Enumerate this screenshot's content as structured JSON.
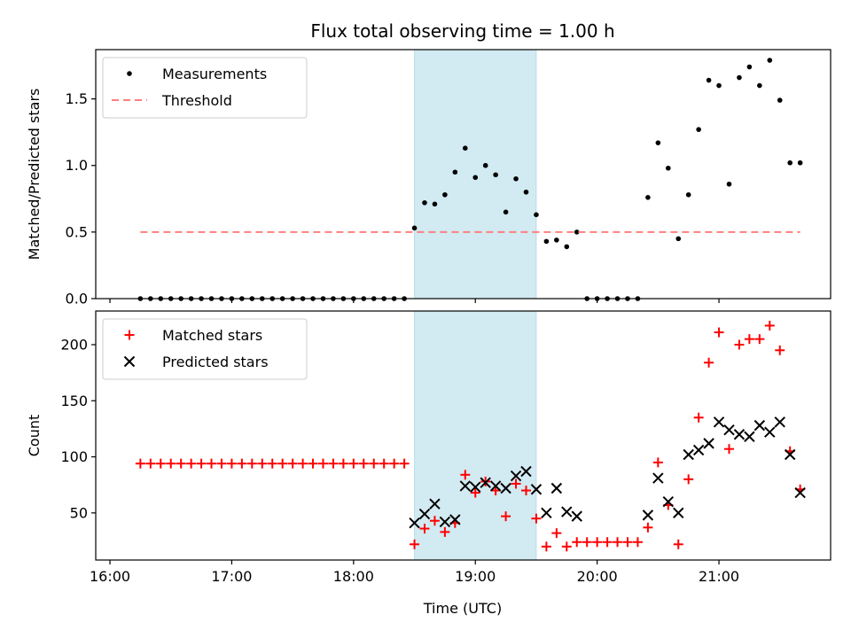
{
  "chart_data": {
    "type": "scatter",
    "title": "Flux total observing time = 1.00 h",
    "xlabel": "Time (UTC)",
    "x_ticks": [
      "16:00",
      "17:00",
      "18:00",
      "19:00",
      "20:00",
      "21:00"
    ],
    "highlight_span": {
      "x": [
        "18:30",
        "19:30"
      ],
      "color": "#add8e6"
    },
    "panels": [
      {
        "ylabel": "Matched/Predicted stars",
        "ylim": [
          0,
          1.87
        ],
        "y_ticks": [
          "0.0",
          "0.5",
          "1.0",
          "1.5"
        ],
        "legend_position": "upper-left",
        "series": [
          {
            "name": "Measurements",
            "marker": "dot",
            "color": "#000000",
            "x": [
              "16:15",
              "16:20",
              "16:25",
              "16:30",
              "16:35",
              "16:40",
              "16:45",
              "16:50",
              "16:55",
              "17:00",
              "17:05",
              "17:10",
              "17:15",
              "17:20",
              "17:25",
              "17:30",
              "17:35",
              "17:40",
              "17:45",
              "17:50",
              "17:55",
              "18:00",
              "18:05",
              "18:10",
              "18:15",
              "18:20",
              "18:25",
              "18:30",
              "18:35",
              "18:40",
              "18:45",
              "18:50",
              "18:55",
              "19:00",
              "19:05",
              "19:10",
              "19:15",
              "19:20",
              "19:25",
              "19:30",
              "19:35",
              "19:40",
              "19:45",
              "19:50",
              "19:55",
              "20:00",
              "20:05",
              "20:10",
              "20:15",
              "20:20",
              "20:25",
              "20:30",
              "20:35",
              "20:40",
              "20:45",
              "20:50",
              "20:55",
              "21:00",
              "21:05",
              "21:10",
              "21:15",
              "21:20",
              "21:25",
              "21:30",
              "21:35",
              "21:40"
            ],
            "y": [
              0,
              0,
              0,
              0,
              0,
              0,
              0,
              0,
              0,
              0,
              0,
              0,
              0,
              0,
              0,
              0,
              0,
              0,
              0,
              0,
              0,
              0,
              0,
              0,
              0,
              0,
              0,
              0.53,
              0.72,
              0.71,
              0.78,
              0.95,
              1.13,
              0.91,
              1.0,
              0.93,
              0.65,
              0.9,
              0.8,
              0.63,
              0.43,
              0.44,
              0.39,
              0.5,
              0,
              0,
              0,
              0,
              0,
              0,
              0.76,
              1.17,
              0.98,
              0.45,
              0.78,
              1.27,
              1.64,
              1.6,
              0.86,
              1.66,
              1.74,
              1.6,
              1.79,
              1.49,
              1.02,
              1.02
            ]
          },
          {
            "name": "Threshold",
            "marker": "dashed-line",
            "color": "#ff7f7f",
            "x": [
              "16:15",
              "21:40"
            ],
            "y": [
              0.5,
              0.5
            ]
          }
        ]
      },
      {
        "ylabel": "Count",
        "ylim": [
          8,
          230
        ],
        "y_ticks": [
          "50",
          "100",
          "150",
          "200"
        ],
        "legend_position": "upper-left",
        "series": [
          {
            "name": "Matched stars",
            "marker": "plus",
            "color": "#ff0000",
            "x": [
              "16:15",
              "16:20",
              "16:25",
              "16:30",
              "16:35",
              "16:40",
              "16:45",
              "16:50",
              "16:55",
              "17:00",
              "17:05",
              "17:10",
              "17:15",
              "17:20",
              "17:25",
              "17:30",
              "17:35",
              "17:40",
              "17:45",
              "17:50",
              "17:55",
              "18:00",
              "18:05",
              "18:10",
              "18:15",
              "18:20",
              "18:25",
              "18:30",
              "18:35",
              "18:40",
              "18:45",
              "18:50",
              "18:55",
              "19:00",
              "19:05",
              "19:10",
              "19:15",
              "19:20",
              "19:25",
              "19:30",
              "19:35",
              "19:40",
              "19:45",
              "19:50",
              "19:55",
              "20:00",
              "20:05",
              "20:10",
              "20:15",
              "20:20",
              "20:25",
              "20:30",
              "20:35",
              "20:40",
              "20:45",
              "20:50",
              "20:55",
              "21:00",
              "21:05",
              "21:10",
              "21:15",
              "21:20",
              "21:25",
              "21:30",
              "21:35",
              "21:40"
            ],
            "y": [
              94,
              94,
              94,
              94,
              94,
              94,
              94,
              94,
              94,
              94,
              94,
              94,
              94,
              94,
              94,
              94,
              94,
              94,
              94,
              94,
              94,
              94,
              94,
              94,
              94,
              94,
              94,
              22,
              36,
              43,
              33,
              41,
              84,
              68,
              78,
              70,
              47,
              76,
              70,
              45,
              20,
              32,
              20,
              24,
              24,
              24,
              24,
              24,
              24,
              24,
              37,
              95,
              57,
              22,
              80,
              135,
              184,
              211,
              107,
              200,
              205,
              205,
              217,
              195,
              105,
              71
            ]
          },
          {
            "name": "Predicted stars",
            "marker": "x",
            "color": "#000000",
            "x": [
              "18:30",
              "18:35",
              "18:40",
              "18:45",
              "18:50",
              "18:55",
              "19:00",
              "19:05",
              "19:10",
              "19:15",
              "19:20",
              "19:25",
              "19:30",
              "19:35",
              "19:40",
              "19:45",
              "19:50",
              "20:25",
              "20:30",
              "20:35",
              "20:40",
              "20:45",
              "20:50",
              "20:55",
              "21:00",
              "21:05",
              "21:10",
              "21:15",
              "21:20",
              "21:25",
              "21:30",
              "21:35",
              "21:40"
            ],
            "y": [
              41,
              49,
              58,
              42,
              44,
              74,
              73,
              77,
              74,
              72,
              83,
              87,
              71,
              50,
              72,
              51,
              47,
              48,
              81,
              60,
              50,
              102,
              106,
              112,
              131,
              124,
              120,
              118,
              128,
              122,
              131,
              102,
              68
            ]
          }
        ]
      }
    ]
  }
}
